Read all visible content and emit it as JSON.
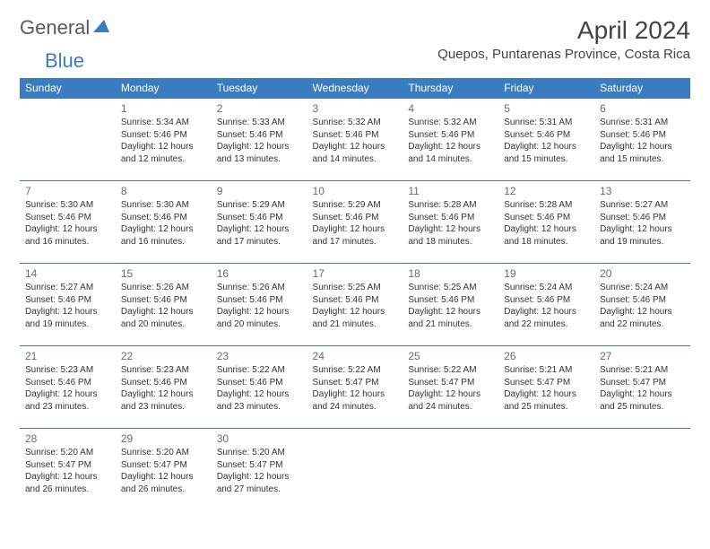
{
  "logo": {
    "text1": "General",
    "text2": "Blue"
  },
  "title": "April 2024",
  "location": "Quepos, Puntarenas Province, Costa Rica",
  "colors": {
    "header_bg": "#3b7bbf",
    "header_text": "#ffffff",
    "border": "#3b7bbf",
    "text": "#333333",
    "daynum": "#6a6a6a",
    "logo_gray": "#5a5a5a",
    "logo_blue": "#3b7bbf"
  },
  "day_headers": [
    "Sunday",
    "Monday",
    "Tuesday",
    "Wednesday",
    "Thursday",
    "Friday",
    "Saturday"
  ],
  "weeks": [
    [
      null,
      {
        "n": "1",
        "sr": "Sunrise: 5:34 AM",
        "ss": "Sunset: 5:46 PM",
        "dl1": "Daylight: 12 hours",
        "dl2": "and 12 minutes."
      },
      {
        "n": "2",
        "sr": "Sunrise: 5:33 AM",
        "ss": "Sunset: 5:46 PM",
        "dl1": "Daylight: 12 hours",
        "dl2": "and 13 minutes."
      },
      {
        "n": "3",
        "sr": "Sunrise: 5:32 AM",
        "ss": "Sunset: 5:46 PM",
        "dl1": "Daylight: 12 hours",
        "dl2": "and 14 minutes."
      },
      {
        "n": "4",
        "sr": "Sunrise: 5:32 AM",
        "ss": "Sunset: 5:46 PM",
        "dl1": "Daylight: 12 hours",
        "dl2": "and 14 minutes."
      },
      {
        "n": "5",
        "sr": "Sunrise: 5:31 AM",
        "ss": "Sunset: 5:46 PM",
        "dl1": "Daylight: 12 hours",
        "dl2": "and 15 minutes."
      },
      {
        "n": "6",
        "sr": "Sunrise: 5:31 AM",
        "ss": "Sunset: 5:46 PM",
        "dl1": "Daylight: 12 hours",
        "dl2": "and 15 minutes."
      }
    ],
    [
      {
        "n": "7",
        "sr": "Sunrise: 5:30 AM",
        "ss": "Sunset: 5:46 PM",
        "dl1": "Daylight: 12 hours",
        "dl2": "and 16 minutes."
      },
      {
        "n": "8",
        "sr": "Sunrise: 5:30 AM",
        "ss": "Sunset: 5:46 PM",
        "dl1": "Daylight: 12 hours",
        "dl2": "and 16 minutes."
      },
      {
        "n": "9",
        "sr": "Sunrise: 5:29 AM",
        "ss": "Sunset: 5:46 PM",
        "dl1": "Daylight: 12 hours",
        "dl2": "and 17 minutes."
      },
      {
        "n": "10",
        "sr": "Sunrise: 5:29 AM",
        "ss": "Sunset: 5:46 PM",
        "dl1": "Daylight: 12 hours",
        "dl2": "and 17 minutes."
      },
      {
        "n": "11",
        "sr": "Sunrise: 5:28 AM",
        "ss": "Sunset: 5:46 PM",
        "dl1": "Daylight: 12 hours",
        "dl2": "and 18 minutes."
      },
      {
        "n": "12",
        "sr": "Sunrise: 5:28 AM",
        "ss": "Sunset: 5:46 PM",
        "dl1": "Daylight: 12 hours",
        "dl2": "and 18 minutes."
      },
      {
        "n": "13",
        "sr": "Sunrise: 5:27 AM",
        "ss": "Sunset: 5:46 PM",
        "dl1": "Daylight: 12 hours",
        "dl2": "and 19 minutes."
      }
    ],
    [
      {
        "n": "14",
        "sr": "Sunrise: 5:27 AM",
        "ss": "Sunset: 5:46 PM",
        "dl1": "Daylight: 12 hours",
        "dl2": "and 19 minutes."
      },
      {
        "n": "15",
        "sr": "Sunrise: 5:26 AM",
        "ss": "Sunset: 5:46 PM",
        "dl1": "Daylight: 12 hours",
        "dl2": "and 20 minutes."
      },
      {
        "n": "16",
        "sr": "Sunrise: 5:26 AM",
        "ss": "Sunset: 5:46 PM",
        "dl1": "Daylight: 12 hours",
        "dl2": "and 20 minutes."
      },
      {
        "n": "17",
        "sr": "Sunrise: 5:25 AM",
        "ss": "Sunset: 5:46 PM",
        "dl1": "Daylight: 12 hours",
        "dl2": "and 21 minutes."
      },
      {
        "n": "18",
        "sr": "Sunrise: 5:25 AM",
        "ss": "Sunset: 5:46 PM",
        "dl1": "Daylight: 12 hours",
        "dl2": "and 21 minutes."
      },
      {
        "n": "19",
        "sr": "Sunrise: 5:24 AM",
        "ss": "Sunset: 5:46 PM",
        "dl1": "Daylight: 12 hours",
        "dl2": "and 22 minutes."
      },
      {
        "n": "20",
        "sr": "Sunrise: 5:24 AM",
        "ss": "Sunset: 5:46 PM",
        "dl1": "Daylight: 12 hours",
        "dl2": "and 22 minutes."
      }
    ],
    [
      {
        "n": "21",
        "sr": "Sunrise: 5:23 AM",
        "ss": "Sunset: 5:46 PM",
        "dl1": "Daylight: 12 hours",
        "dl2": "and 23 minutes."
      },
      {
        "n": "22",
        "sr": "Sunrise: 5:23 AM",
        "ss": "Sunset: 5:46 PM",
        "dl1": "Daylight: 12 hours",
        "dl2": "and 23 minutes."
      },
      {
        "n": "23",
        "sr": "Sunrise: 5:22 AM",
        "ss": "Sunset: 5:46 PM",
        "dl1": "Daylight: 12 hours",
        "dl2": "and 23 minutes."
      },
      {
        "n": "24",
        "sr": "Sunrise: 5:22 AM",
        "ss": "Sunset: 5:47 PM",
        "dl1": "Daylight: 12 hours",
        "dl2": "and 24 minutes."
      },
      {
        "n": "25",
        "sr": "Sunrise: 5:22 AM",
        "ss": "Sunset: 5:47 PM",
        "dl1": "Daylight: 12 hours",
        "dl2": "and 24 minutes."
      },
      {
        "n": "26",
        "sr": "Sunrise: 5:21 AM",
        "ss": "Sunset: 5:47 PM",
        "dl1": "Daylight: 12 hours",
        "dl2": "and 25 minutes."
      },
      {
        "n": "27",
        "sr": "Sunrise: 5:21 AM",
        "ss": "Sunset: 5:47 PM",
        "dl1": "Daylight: 12 hours",
        "dl2": "and 25 minutes."
      }
    ],
    [
      {
        "n": "28",
        "sr": "Sunrise: 5:20 AM",
        "ss": "Sunset: 5:47 PM",
        "dl1": "Daylight: 12 hours",
        "dl2": "and 26 minutes."
      },
      {
        "n": "29",
        "sr": "Sunrise: 5:20 AM",
        "ss": "Sunset: 5:47 PM",
        "dl1": "Daylight: 12 hours",
        "dl2": "and 26 minutes."
      },
      {
        "n": "30",
        "sr": "Sunrise: 5:20 AM",
        "ss": "Sunset: 5:47 PM",
        "dl1": "Daylight: 12 hours",
        "dl2": "and 27 minutes."
      },
      null,
      null,
      null,
      null
    ]
  ]
}
